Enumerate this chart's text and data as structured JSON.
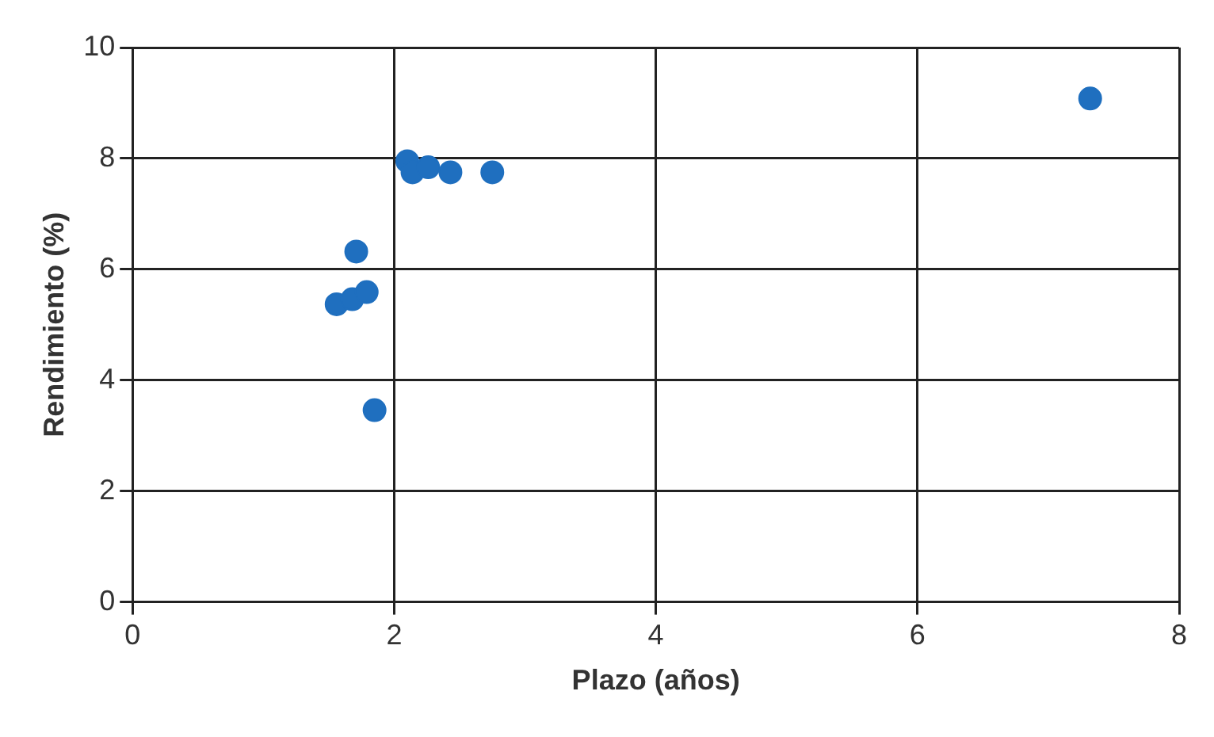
{
  "chart_data": {
    "type": "scatter",
    "xlabel": "Plazo (años)",
    "ylabel": "Rendimiento (%)",
    "x": [
      1.56,
      1.68,
      1.79,
      1.71,
      1.85,
      2.1,
      2.14,
      2.26,
      2.43,
      2.75,
      7.32
    ],
    "values": [
      5.37,
      5.46,
      5.59,
      6.32,
      3.46,
      7.95,
      7.75,
      7.84,
      7.75,
      7.75,
      9.08
    ],
    "color": "#1f6fbf",
    "marker": "circle",
    "xlim": [
      0,
      8
    ],
    "xticks": [
      0,
      2,
      4,
      6,
      8
    ],
    "ylim": [
      0,
      10
    ],
    "yticks": [
      0,
      2,
      4,
      6,
      8,
      10
    ],
    "grid": true,
    "legend": false
  }
}
